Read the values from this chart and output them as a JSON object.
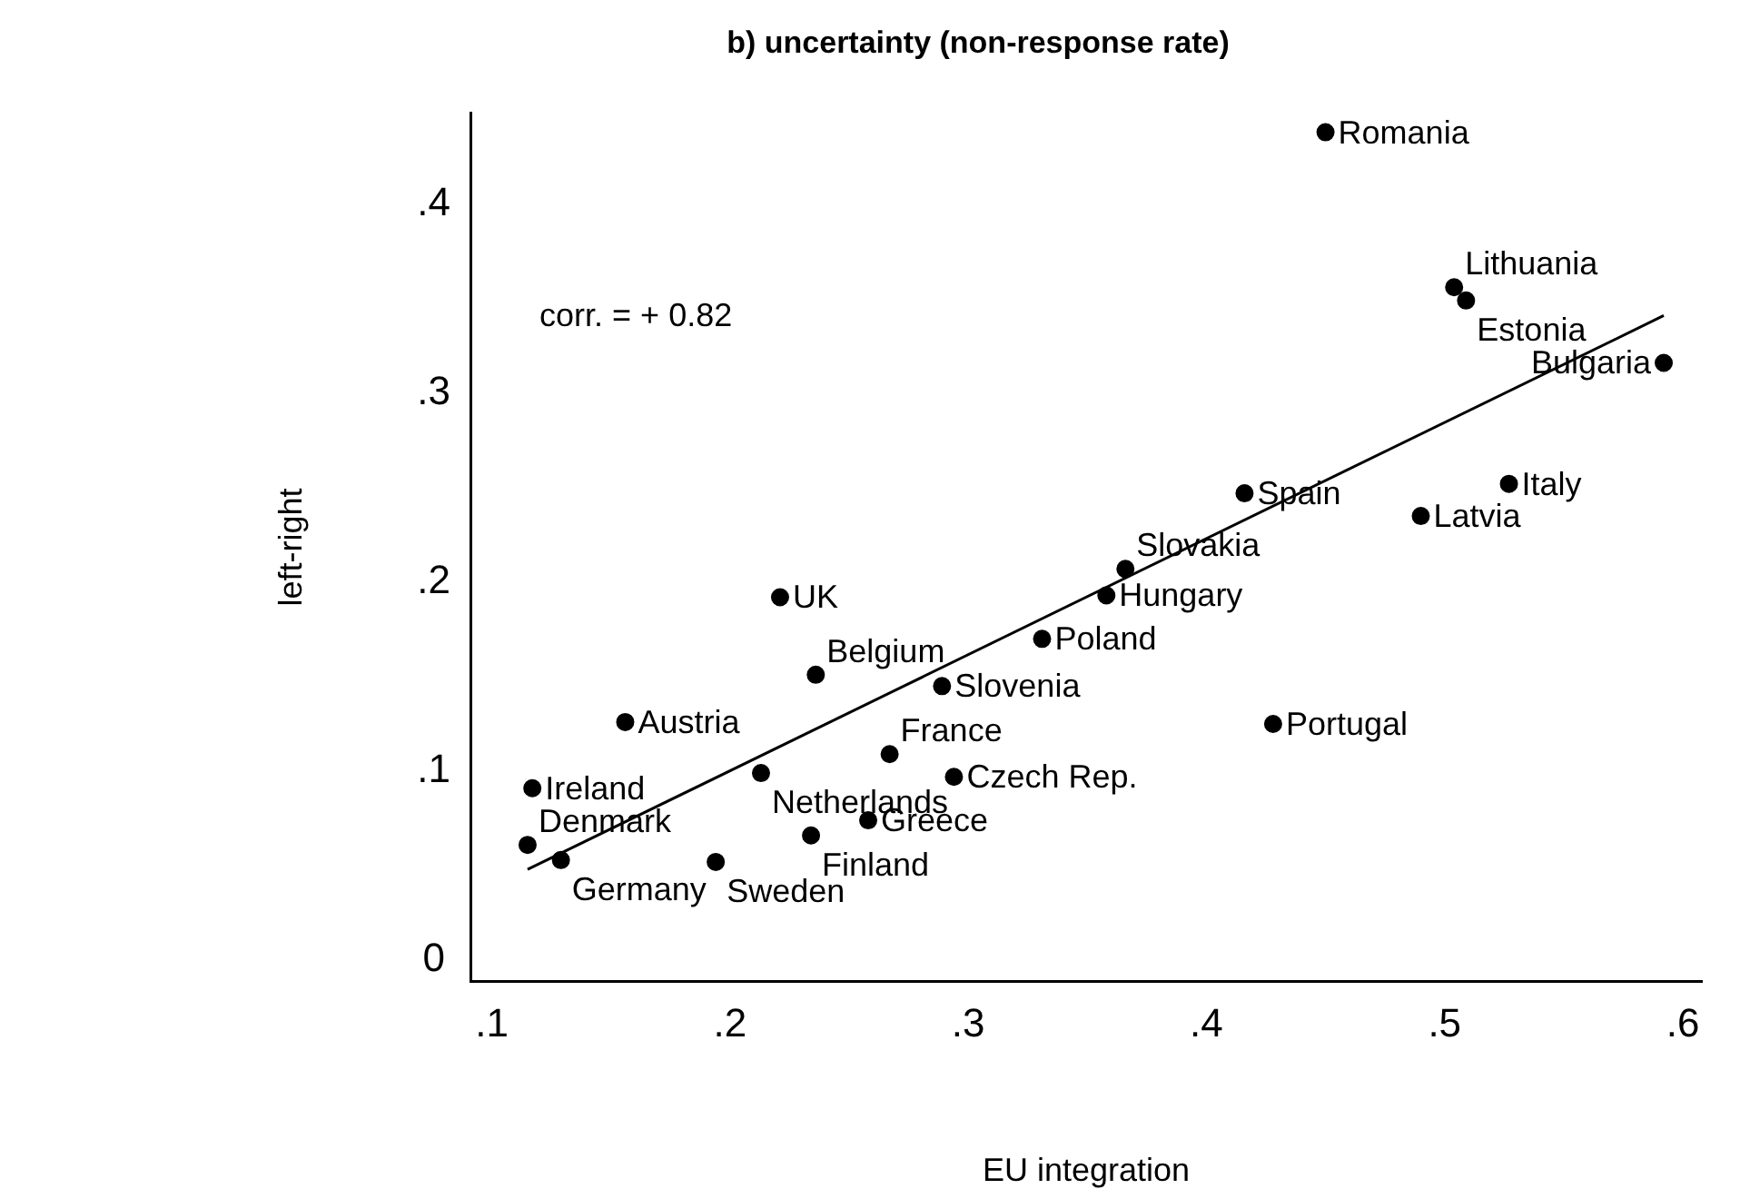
{
  "chart_data": {
    "type": "scatter",
    "title": "b) uncertainty (non-response rate)",
    "xlabel": "EU integration",
    "ylabel": "left-right",
    "xlim": [
      0.091,
      0.608
    ],
    "ylim": [
      -0.011,
      0.448
    ],
    "xticks": [
      {
        "value": 0.1,
        "label": ".1"
      },
      {
        "value": 0.2,
        "label": ".2"
      },
      {
        "value": 0.3,
        "label": ".3"
      },
      {
        "value": 0.4,
        "label": ".4"
      },
      {
        "value": 0.5,
        "label": ".5"
      },
      {
        "value": 0.6,
        "label": ".6"
      }
    ],
    "yticks": [
      0,
      {
        "value": 0.1,
        "label": ".1"
      },
      {
        "value": 0.2,
        "label": ".2"
      },
      {
        "value": 0.3,
        "label": ".3"
      },
      {
        "value": 0.4,
        "label": ".4"
      }
    ],
    "grid": false,
    "legend": false,
    "marker": "circle",
    "series": [
      {
        "type": "scatter",
        "color": "#000000",
        "x": [
          0.45,
          0.504,
          0.509,
          0.592,
          0.416,
          0.527,
          0.49,
          0.366,
          0.358,
          0.331,
          0.428,
          0.221,
          0.236,
          0.289,
          0.156,
          0.267,
          0.294,
          0.117,
          0.213,
          0.258,
          0.234,
          0.115,
          0.129,
          0.194
        ],
        "values": [
          0.438,
          0.356,
          0.349,
          0.316,
          0.247,
          0.252,
          0.235,
          0.207,
          0.193,
          0.17,
          0.125,
          0.192,
          0.151,
          0.145,
          0.126,
          0.109,
          0.097,
          0.091,
          0.099,
          0.074,
          0.066,
          0.061,
          0.053,
          0.052
        ]
      },
      {
        "type": "line",
        "color": "#000000",
        "x": [
          0.115,
          0.592
        ],
        "values": [
          0.048,
          0.341
        ],
        "marker": "none"
      }
    ],
    "annotations": [
      "corr. = + 0.82",
      {
        "text": "Romania",
        "x": 0.45,
        "y": 0.438
      },
      {
        "text": "Lithuania",
        "x": 0.504,
        "y": 0.356
      },
      {
        "text": "Estonia",
        "x": 0.509,
        "y": 0.349
      },
      {
        "text": "Bulgaria",
        "x": 0.592,
        "y": 0.316
      },
      {
        "text": "Spain",
        "x": 0.416,
        "y": 0.247
      },
      {
        "text": "Italy",
        "x": 0.527,
        "y": 0.252
      },
      {
        "text": "Latvia",
        "x": 0.49,
        "y": 0.235
      },
      {
        "text": "Slovakia",
        "x": 0.366,
        "y": 0.207
      },
      {
        "text": "Hungary",
        "x": 0.358,
        "y": 0.193
      },
      {
        "text": "Poland",
        "x": 0.331,
        "y": 0.17
      },
      {
        "text": "Portugal",
        "x": 0.428,
        "y": 0.125
      },
      {
        "text": "UK",
        "x": 0.221,
        "y": 0.192
      },
      {
        "text": "Belgium",
        "x": 0.236,
        "y": 0.151
      },
      {
        "text": "Slovenia",
        "x": 0.289,
        "y": 0.145
      },
      {
        "text": "Austria",
        "x": 0.156,
        "y": 0.126
      },
      {
        "text": "France",
        "x": 0.267,
        "y": 0.109
      },
      {
        "text": "Czech Rep.",
        "x": 0.294,
        "y": 0.097
      },
      {
        "text": "Ireland",
        "x": 0.117,
        "y": 0.091
      },
      {
        "text": "Netherlands",
        "x": 0.213,
        "y": 0.099
      },
      {
        "text": "Greece",
        "x": 0.258,
        "y": 0.074
      },
      {
        "text": "Finland",
        "x": 0.234,
        "y": 0.066
      },
      {
        "text": "Denmark",
        "x": 0.115,
        "y": 0.061
      },
      {
        "text": "Germany",
        "x": 0.129,
        "y": 0.053
      },
      {
        "text": "Sweden",
        "x": 0.194,
        "y": 0.052
      }
    ]
  }
}
